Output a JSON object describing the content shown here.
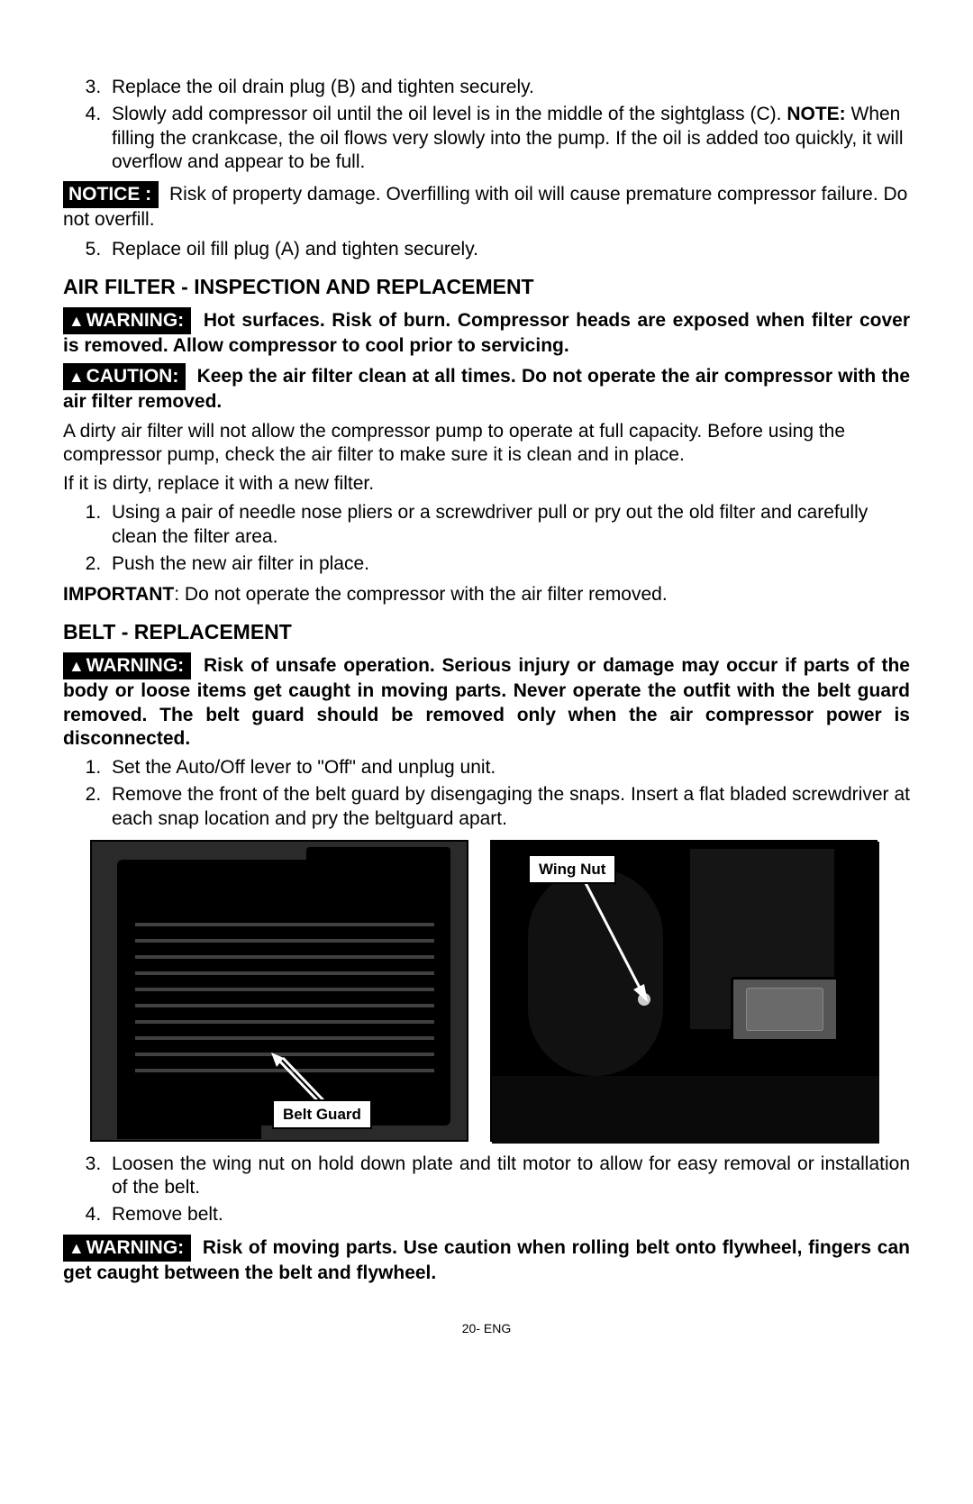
{
  "ol1": {
    "start": 3,
    "items": [
      "Replace the oil drain plug (B) and tighten securely.",
      "Slowly add compressor oil until the oil level is in the middle of the sightglass (C). NOTE: When filling the crankcase, the oil flows very slowly into the pump. If the oil is added too quickly, it will overflow and appear to be full."
    ]
  },
  "notice": {
    "label": "NOTICE :",
    "text": "Risk of property damage. Overfilling with oil will cause premature compressor failure. Do not overfill."
  },
  "ol2": {
    "start": 5,
    "items": [
      "Replace oil fill plug (A) and tighten securely."
    ]
  },
  "section1_title": "AIR FILTER - INSPECTION AND REPLACEMENT",
  "warning1": {
    "label": "WARNING:",
    "text": "Hot surfaces. Risk of burn. Compressor heads are exposed when filter cover is removed. Allow compressor to cool prior to servicing."
  },
  "caution1": {
    "label": "CAUTION:",
    "text": "Keep the air filter clean at all times. Do not operate the air compressor with the air filter removed."
  },
  "para1": "A dirty air filter will not allow the compressor pump to operate at full capacity. Before using the compressor pump, check the air filter to make sure it is clean and in place.",
  "para2": "If it is dirty, replace it with a new filter.",
  "ol3": {
    "items": [
      "Using a pair of needle nose pliers or a screwdriver pull or pry out the old filter and carefully clean the filter area.",
      "Push the new air filter in place."
    ]
  },
  "important": {
    "label": "IMPORTANT",
    "text": ": Do not operate the compressor with the air filter removed."
  },
  "section2_title": "BELT - REPLACEMENT",
  "warning2": {
    "label": "WARNING:",
    "text": "Risk of unsafe operation. Serious injury or damage may occur if parts of the body or loose items get caught in moving parts. Never operate the outfit with the belt guard removed. The belt guard should be removed only when the air compressor power is disconnected."
  },
  "ol4": {
    "items": [
      "Set the Auto/Off lever to \"Off\" and unplug unit.",
      "Remove the front of the belt guard by disengaging the snaps. Insert a flat bladed screwdriver at each snap location and pry the beltguard apart."
    ]
  },
  "fig1_callout": "Belt Guard",
  "fig2_callout": "Wing Nut",
  "ol5": {
    "start": 3,
    "items": [
      "Loosen the wing nut on hold down plate and tilt motor to allow for easy removal or installation of the belt.",
      "Remove belt."
    ]
  },
  "warning3": {
    "label": "WARNING:",
    "text": "Risk of moving parts. Use caution when rolling belt onto flywheel, fingers can get caught between the belt and flywheel."
  },
  "footer": "20- ENG"
}
